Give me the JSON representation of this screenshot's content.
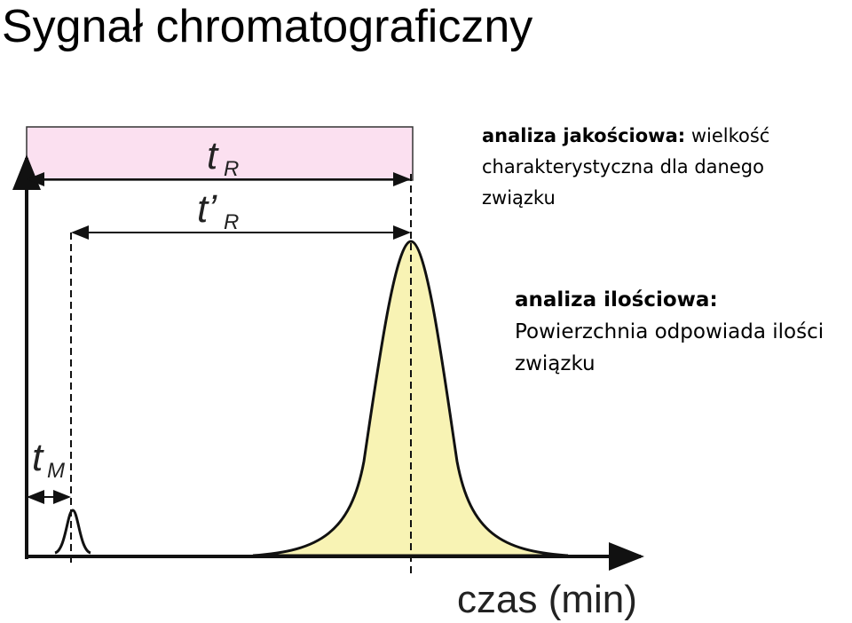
{
  "title": "Sygnał chromatograficzny",
  "labels": {
    "tR": {
      "main": "t",
      "sub": "R"
    },
    "tpR": {
      "main": "t’",
      "sub": "R"
    },
    "tM": {
      "main": "t",
      "sub": "M"
    },
    "axis": "czas (min)"
  },
  "notes": {
    "quality": {
      "heading": "analiza jakościowa:",
      "text": "wielkość charakterystyczna dla danego związku"
    },
    "quantity": {
      "heading": "analiza ilościowa:",
      "text": "Powierzchnia odpowiada ilości związku"
    }
  }
}
